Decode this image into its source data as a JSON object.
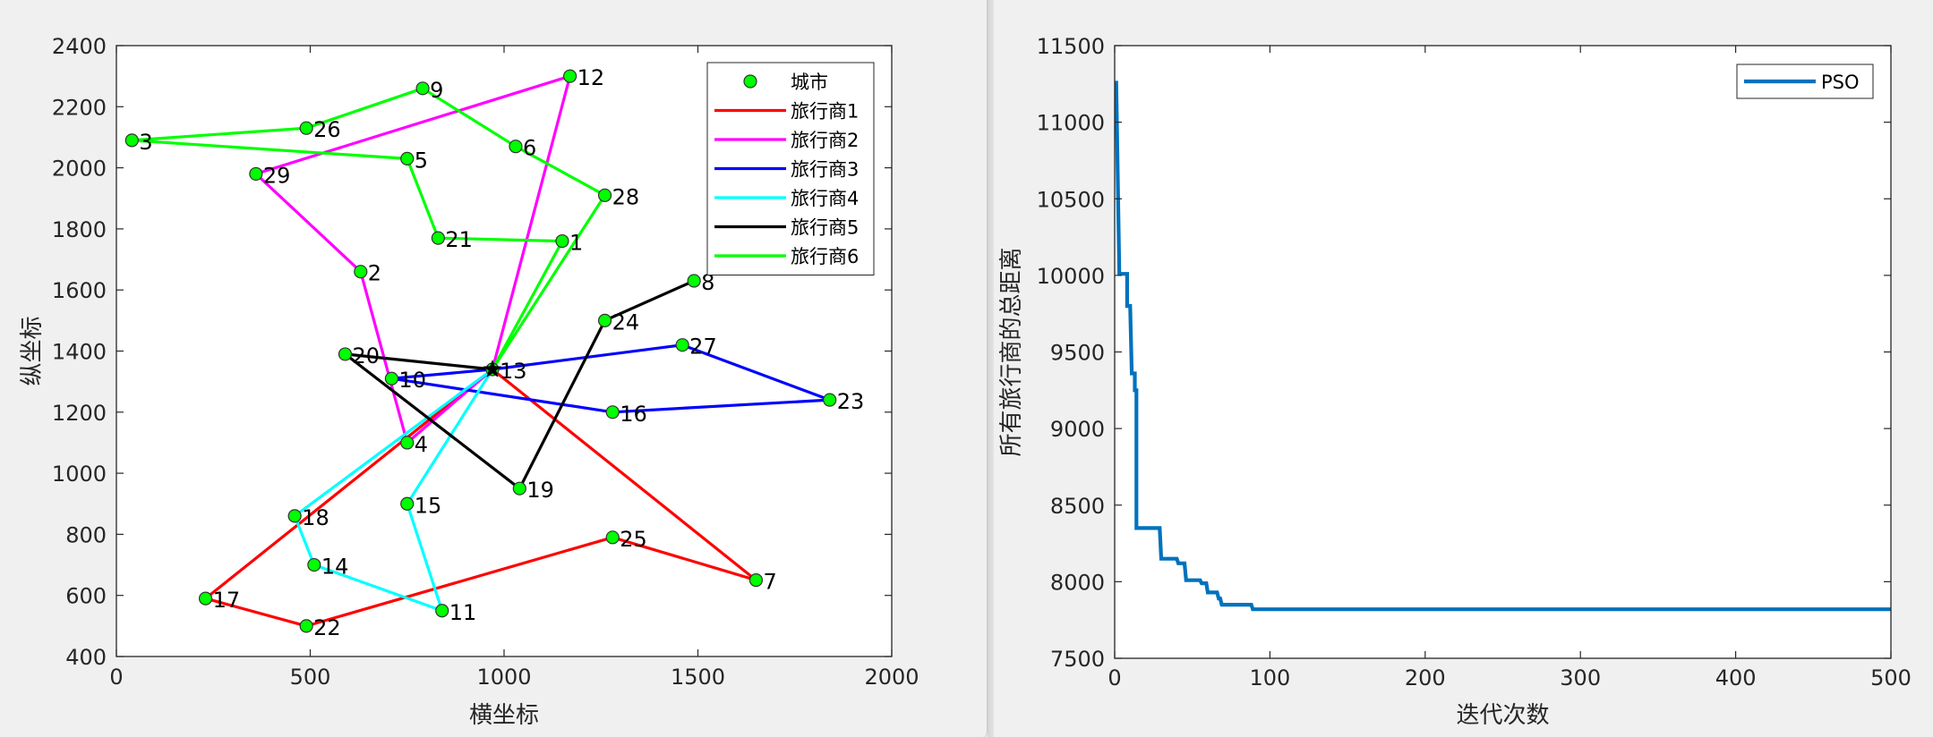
{
  "chart_data": [
    {
      "type": "scatter",
      "xlabel": "横坐标",
      "ylabel": "纵坐标",
      "xlim": [
        0,
        2000
      ],
      "ylim": [
        400,
        2400
      ],
      "xticks": [
        0,
        500,
        1000,
        1500,
        2000
      ],
      "yticks": [
        400,
        600,
        800,
        1000,
        1200,
        1400,
        1600,
        1800,
        2000,
        2200,
        2400
      ],
      "depot": {
        "x": 970,
        "y": 1340,
        "marker": "star"
      },
      "cities": [
        {
          "id": "2",
          "x": 630,
          "y": 1660
        },
        {
          "id": "1",
          "x": 1150,
          "y": 1760
        },
        {
          "id": "3",
          "x": 40,
          "y": 2090
        },
        {
          "id": "4",
          "x": 750,
          "y": 1100
        },
        {
          "id": "5",
          "x": 750,
          "y": 2030
        },
        {
          "id": "6",
          "x": 1030,
          "y": 2070
        },
        {
          "id": "7",
          "x": 1650,
          "y": 650
        },
        {
          "id": "8",
          "x": 1490,
          "y": 1630
        },
        {
          "id": "9",
          "x": 790,
          "y": 2260
        },
        {
          "id": "10",
          "x": 710,
          "y": 1310
        },
        {
          "id": "11",
          "x": 840,
          "y": 550
        },
        {
          "id": "12",
          "x": 1170,
          "y": 2300
        },
        {
          "id": "13",
          "x": 970,
          "y": 1340
        },
        {
          "id": "14",
          "x": 510,
          "y": 700
        },
        {
          "id": "15",
          "x": 750,
          "y": 900
        },
        {
          "id": "16",
          "x": 1280,
          "y": 1200
        },
        {
          "id": "17",
          "x": 230,
          "y": 590
        },
        {
          "id": "18",
          "x": 460,
          "y": 860
        },
        {
          "id": "19",
          "x": 1040,
          "y": 950
        },
        {
          "id": "20",
          "x": 590,
          "y": 1390
        },
        {
          "id": "21",
          "x": 830,
          "y": 1770
        },
        {
          "id": "22",
          "x": 490,
          "y": 500
        },
        {
          "id": "23",
          "x": 1840,
          "y": 1240
        },
        {
          "id": "24",
          "x": 1260,
          "y": 1500
        },
        {
          "id": "25",
          "x": 1280,
          "y": 790
        },
        {
          "id": "26",
          "x": 490,
          "y": 2130
        },
        {
          "id": "27",
          "x": 1460,
          "y": 1420
        },
        {
          "id": "28",
          "x": 1260,
          "y": 1910
        },
        {
          "id": "29",
          "x": 360,
          "y": 1980
        }
      ],
      "routes": [
        {
          "name": "旅行商1",
          "color": "#ff0000",
          "points": [
            [
              970,
              1340
            ],
            [
              1650,
              650
            ],
            [
              1280,
              790
            ],
            [
              490,
              500
            ],
            [
              230,
              590
            ],
            [
              970,
              1340
            ]
          ]
        },
        {
          "name": "旅行商2",
          "color": "#ff00ff",
          "points": [
            [
              970,
              1340
            ],
            [
              1170,
              2300
            ],
            [
              360,
              1980
            ],
            [
              630,
              1660
            ],
            [
              750,
              1100
            ],
            [
              970,
              1340
            ]
          ]
        },
        {
          "name": "旅行商3",
          "color": "#0000ff",
          "points": [
            [
              970,
              1340
            ],
            [
              1460,
              1420
            ],
            [
              1840,
              1240
            ],
            [
              1280,
              1200
            ],
            [
              710,
              1310
            ],
            [
              970,
              1340
            ]
          ]
        },
        {
          "name": "旅行商4",
          "color": "#00ffff",
          "points": [
            [
              970,
              1340
            ],
            [
              460,
              860
            ],
            [
              510,
              700
            ],
            [
              840,
              550
            ],
            [
              750,
              900
            ],
            [
              970,
              1340
            ]
          ]
        },
        {
          "name": "旅行商5",
          "color": "#000000",
          "points": [
            [
              970,
              1340
            ],
            [
              590,
              1390
            ],
            [
              1040,
              950
            ],
            [
              1260,
              1500
            ],
            [
              1490,
              1630
            ]
          ]
        },
        {
          "name": "旅行商6",
          "color": "#00ff00",
          "points": [
            [
              970,
              1340
            ],
            [
              1260,
              1910
            ],
            [
              1030,
              2070
            ],
            [
              790,
              2260
            ],
            [
              490,
              2130
            ],
            [
              40,
              2090
            ],
            [
              750,
              2030
            ],
            [
              830,
              1770
            ],
            [
              1150,
              1760
            ],
            [
              970,
              1340
            ]
          ]
        }
      ],
      "legend": {
        "position": "top-right",
        "entries": [
          "城市",
          "旅行商1",
          "旅行商2",
          "旅行商3",
          "旅行商4",
          "旅行商5",
          "旅行商6"
        ]
      }
    },
    {
      "type": "line",
      "xlabel": "迭代次数",
      "ylabel": "所有旅行商的总距离",
      "xlim": [
        0,
        500
      ],
      "ylim": [
        7500,
        11500
      ],
      "xticks": [
        0,
        100,
        200,
        300,
        400,
        500
      ],
      "yticks": [
        7500,
        8000,
        8500,
        9000,
        9500,
        10000,
        10500,
        11000,
        11500
      ],
      "series": [
        {
          "name": "PSO",
          "color": "#0072bd",
          "points": [
            [
              1,
              11270
            ],
            [
              3,
              10010
            ],
            [
              8,
              10010
            ],
            [
              8,
              9800
            ],
            [
              10,
              9800
            ],
            [
              11,
              9360
            ],
            [
              13,
              9360
            ],
            [
              13,
              9250
            ],
            [
              14,
              9250
            ],
            [
              14,
              8350
            ],
            [
              29,
              8350
            ],
            [
              30,
              8150
            ],
            [
              40,
              8150
            ],
            [
              41,
              8120
            ],
            [
              45,
              8120
            ],
            [
              46,
              8010
            ],
            [
              55,
              8010
            ],
            [
              56,
              7990
            ],
            [
              59,
              7990
            ],
            [
              60,
              7930
            ],
            [
              66,
              7930
            ],
            [
              67,
              7890
            ],
            [
              68,
              7890
            ],
            [
              69,
              7850
            ],
            [
              88,
              7850
            ],
            [
              89,
              7820
            ],
            [
              500,
              7820
            ]
          ]
        }
      ],
      "legend": {
        "position": "top-right",
        "entries": [
          "PSO"
        ]
      }
    }
  ]
}
